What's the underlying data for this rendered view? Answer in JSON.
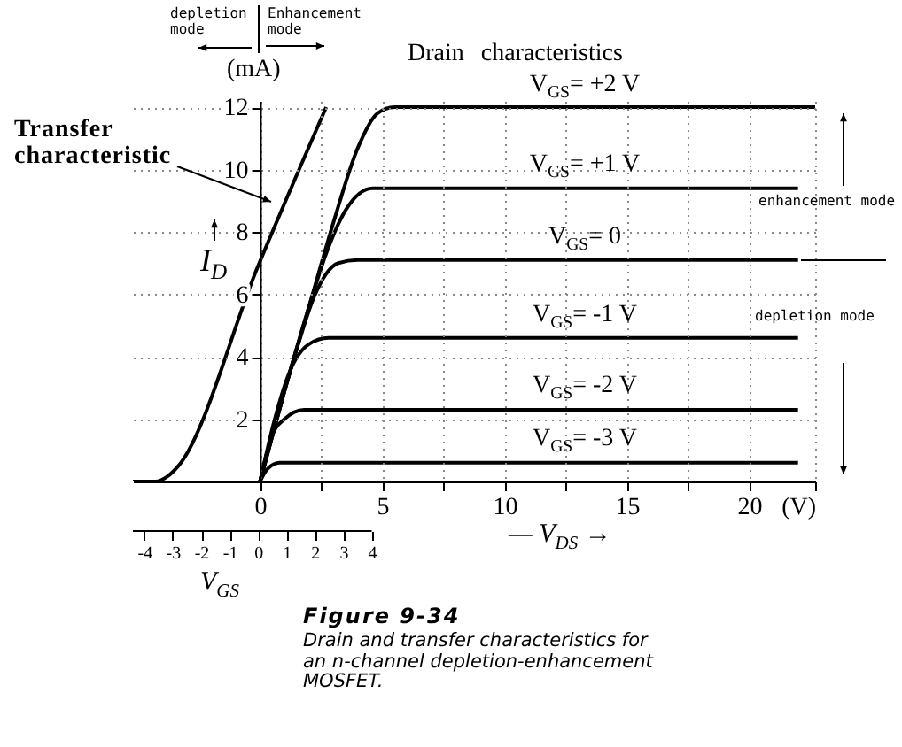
{
  "chart_data": {
    "type": "line",
    "title": "Figure 9-34",
    "subtitle": "Drain and transfer characteristics for an n-channel depletion-enhancement MOSFET.",
    "xlabel": "— V$_{DS}$ →",
    "x2label": "V$_{GS}$",
    "ylabel": "I$_{D}$",
    "annotations": [
      "Transfer characteristic",
      "depletion mode",
      "Enhancement mode",
      "(mA)",
      "Drain characteristics",
      "enhancement mode",
      "depletion mode"
    ],
    "xlim": [
      -5.2,
      22.7
    ],
    "xticks": [
      0,
      {
        "value": 2.5,
        "label": null
      },
      5,
      {
        "value": 7.5,
        "label": null
      },
      10,
      {
        "value": 12.5,
        "label": null
      },
      15,
      {
        "value": 17.5,
        "label": null
      },
      20,
      {
        "value": 22.7,
        "label": "(V)"
      }
    ],
    "x2lim": [
      -4.4,
      19.6
    ],
    "x2ticks": [
      -4,
      -3,
      -2,
      -1,
      0,
      1,
      2,
      3,
      4
    ],
    "ylim": [
      0,
      12.2
    ],
    "yticks": [
      2,
      4,
      6,
      8,
      10,
      12
    ],
    "grid": true,
    "legend": false,
    "series": [
      {
        "name": "V$_{GS}$= +2 V",
        "color": "#000000",
        "x": [
          0,
          1,
          2,
          3,
          4,
          4.8,
          5.5,
          22.7
        ],
        "values": [
          0,
          2.9,
          5.6,
          8.3,
          10.7,
          11.8,
          12,
          12
        ]
      },
      {
        "name": "V$_{GS}$= +1 V",
        "color": "#000000",
        "x": [
          0,
          1,
          2,
          2.7,
          3.5,
          4.6,
          22
        ],
        "values": [
          0,
          2.9,
          5.6,
          7.3,
          8.7,
          9.4,
          9.4
        ]
      },
      {
        "name": "V$_{GS}$= 0",
        "color": "#000000",
        "x": [
          0,
          1,
          1.6,
          2.2,
          3.2,
          4,
          22
        ],
        "values": [
          0,
          2.9,
          4.5,
          5.9,
          7,
          7.1,
          7.1
        ]
      },
      {
        "name": "V$_{GS}$= -1 V",
        "color": "#000000",
        "x": [
          0,
          0.6,
          1.2,
          2,
          2.8,
          22
        ],
        "values": [
          0,
          2,
          3.5,
          4.4,
          4.6,
          4.6
        ]
      },
      {
        "name": "V$_{GS}$= -2 V",
        "color": "#000000",
        "x": [
          0,
          0.5,
          1,
          1.8,
          22
        ],
        "values": [
          0,
          1.5,
          2,
          2.3,
          2.3
        ]
      },
      {
        "name": "V$_{GS}$= -3  V",
        "color": "#000000",
        "x": [
          0,
          0.3,
          0.8,
          22
        ],
        "values": [
          0,
          0.4,
          0.6,
          0.6
        ]
      },
      {
        "color": "#000000",
        "axis": "x2",
        "x": [
          -4.4,
          -3.6,
          -3.2,
          -2.8,
          0,
          2.4
        ],
        "values": [
          0,
          0,
          0.15,
          0.5,
          6.9,
          12
        ]
      }
    ]
  }
}
